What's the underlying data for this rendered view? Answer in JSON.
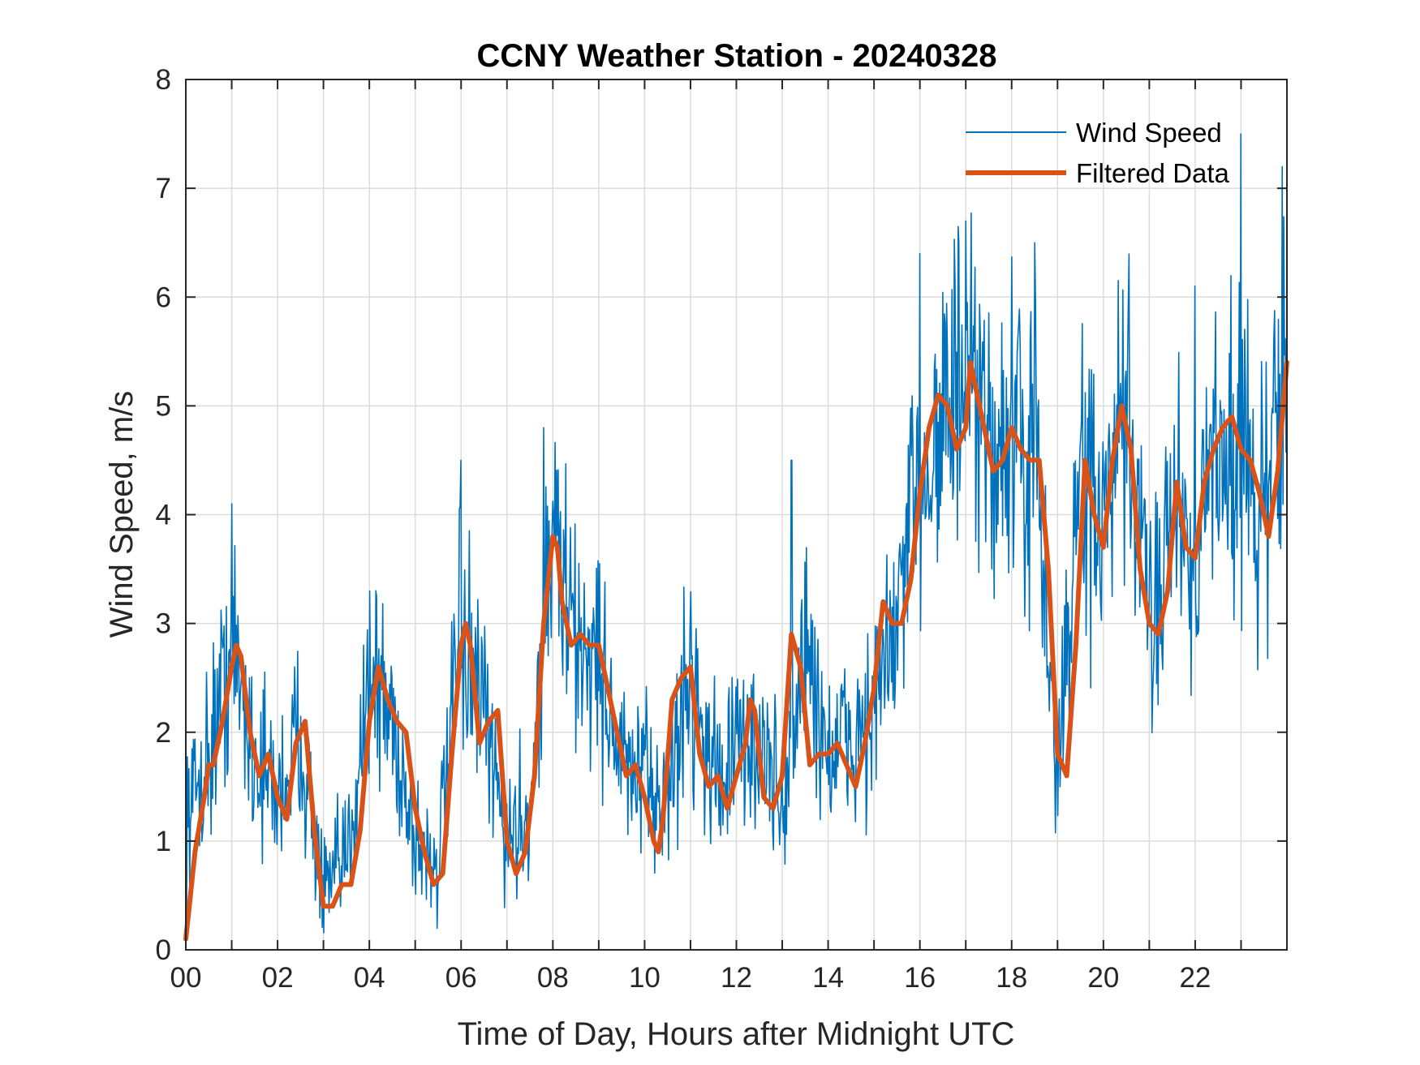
{
  "chart_data": {
    "type": "line",
    "title": "CCNY Weather Station - 20240328",
    "xlabel": "Time of Day, Hours after Midnight UTC",
    "ylabel": "Wind Speed, m/s",
    "xlim": [
      0,
      24
    ],
    "ylim": [
      0,
      8
    ],
    "x_ticks": [
      0,
      2,
      4,
      6,
      8,
      10,
      12,
      14,
      16,
      18,
      20,
      22
    ],
    "x_tick_labels": [
      "00",
      "02",
      "04",
      "06",
      "08",
      "10",
      "12",
      "14",
      "16",
      "18",
      "20",
      "22"
    ],
    "y_ticks": [
      0,
      1,
      2,
      3,
      4,
      5,
      6,
      7,
      8
    ],
    "y_tick_labels": [
      "0",
      "1",
      "2",
      "3",
      "4",
      "5",
      "6",
      "7",
      "8"
    ],
    "grid": true,
    "legend_position": "top-right",
    "colors": {
      "raw": "#0072BD",
      "filtered": "#D95319",
      "grid": "#dcdcdc",
      "axes": "#262626"
    },
    "series": [
      {
        "name": "Wind Speed",
        "style": "thin",
        "sample_step_hours": 0.0167,
        "noise_amplitude": 0.9,
        "envelope": [
          [
            0.0,
            1.2
          ],
          [
            0.5,
            1.8
          ],
          [
            1.0,
            2.8
          ],
          [
            1.5,
            1.8
          ],
          [
            2.0,
            1.4
          ],
          [
            2.5,
            2.0
          ],
          [
            3.0,
            0.5
          ],
          [
            3.5,
            0.8
          ],
          [
            4.0,
            2.6
          ],
          [
            4.5,
            2.1
          ],
          [
            5.0,
            1.0
          ],
          [
            5.5,
            0.8
          ],
          [
            6.0,
            2.9
          ],
          [
            6.5,
            2.1
          ],
          [
            7.0,
            1.0
          ],
          [
            7.5,
            1.3
          ],
          [
            8.0,
            3.9
          ],
          [
            8.5,
            2.8
          ],
          [
            9.0,
            2.7
          ],
          [
            9.5,
            1.7
          ],
          [
            10.0,
            1.5
          ],
          [
            10.5,
            1.4
          ],
          [
            11.0,
            2.6
          ],
          [
            11.5,
            1.6
          ],
          [
            12.0,
            1.8
          ],
          [
            12.5,
            1.9
          ],
          [
            13.0,
            1.3
          ],
          [
            13.5,
            2.8
          ],
          [
            14.0,
            1.8
          ],
          [
            14.5,
            1.9
          ],
          [
            15.0,
            2.2
          ],
          [
            15.5,
            3.0
          ],
          [
            16.0,
            4.3
          ],
          [
            16.5,
            5.0
          ],
          [
            17.0,
            5.1
          ],
          [
            17.5,
            4.6
          ],
          [
            18.0,
            4.7
          ],
          [
            18.5,
            4.5
          ],
          [
            19.0,
            1.6
          ],
          [
            19.5,
            4.4
          ],
          [
            20.0,
            3.8
          ],
          [
            20.5,
            4.9
          ],
          [
            21.0,
            3.0
          ],
          [
            21.5,
            4.2
          ],
          [
            22.0,
            3.6
          ],
          [
            22.5,
            4.7
          ],
          [
            23.0,
            4.6
          ],
          [
            23.5,
            3.9
          ],
          [
            24.0,
            5.5
          ]
        ],
        "spikes": [
          [
            1.0,
            4.1
          ],
          [
            6.0,
            4.5
          ],
          [
            7.8,
            4.8
          ],
          [
            13.2,
            4.5
          ],
          [
            16.0,
            6.4
          ],
          [
            17.0,
            6.7
          ],
          [
            18.5,
            6.5
          ],
          [
            22.0,
            6.1
          ],
          [
            23.0,
            7.5
          ],
          [
            23.9,
            7.2
          ]
        ]
      },
      {
        "name": "Filtered Data",
        "style": "thick",
        "x": [
          0.0,
          0.1,
          0.2,
          0.4,
          0.5,
          0.6,
          0.8,
          1.0,
          1.1,
          1.2,
          1.4,
          1.6,
          1.8,
          2.0,
          2.2,
          2.4,
          2.6,
          2.8,
          3.0,
          3.2,
          3.4,
          3.6,
          3.8,
          4.0,
          4.2,
          4.4,
          4.6,
          4.8,
          5.0,
          5.2,
          5.4,
          5.6,
          5.8,
          6.0,
          6.1,
          6.2,
          6.4,
          6.6,
          6.8,
          7.0,
          7.2,
          7.4,
          7.6,
          7.8,
          8.0,
          8.1,
          8.2,
          8.4,
          8.6,
          8.8,
          9.0,
          9.2,
          9.4,
          9.6,
          9.8,
          10.0,
          10.2,
          10.3,
          10.4,
          10.6,
          10.8,
          11.0,
          11.2,
          11.4,
          11.6,
          11.8,
          12.0,
          12.2,
          12.3,
          12.4,
          12.6,
          12.8,
          13.0,
          13.2,
          13.4,
          13.6,
          13.8,
          14.0,
          14.2,
          14.4,
          14.6,
          14.8,
          15.0,
          15.2,
          15.4,
          15.6,
          15.8,
          16.0,
          16.2,
          16.4,
          16.6,
          16.8,
          17.0,
          17.1,
          17.2,
          17.4,
          17.6,
          17.8,
          18.0,
          18.2,
          18.4,
          18.6,
          18.8,
          19.0,
          19.2,
          19.4,
          19.6,
          19.8,
          20.0,
          20.2,
          20.4,
          20.6,
          20.8,
          21.0,
          21.2,
          21.4,
          21.6,
          21.8,
          22.0,
          22.2,
          22.4,
          22.6,
          22.8,
          23.0,
          23.2,
          23.4,
          23.6,
          23.8,
          24.0
        ],
        "y": [
          0.1,
          0.5,
          0.9,
          1.4,
          1.7,
          1.7,
          2.1,
          2.6,
          2.8,
          2.7,
          2.0,
          1.6,
          1.8,
          1.4,
          1.2,
          1.9,
          2.1,
          1.1,
          0.4,
          0.4,
          0.6,
          0.6,
          1.1,
          2.1,
          2.6,
          2.3,
          2.1,
          2.0,
          1.3,
          0.9,
          0.6,
          0.7,
          1.8,
          2.8,
          3.0,
          2.8,
          1.9,
          2.1,
          2.2,
          1.0,
          0.7,
          0.9,
          1.6,
          3.0,
          3.8,
          3.7,
          3.2,
          2.8,
          2.9,
          2.8,
          2.8,
          2.4,
          2.0,
          1.6,
          1.7,
          1.4,
          1.0,
          0.9,
          1.2,
          2.3,
          2.5,
          2.6,
          1.8,
          1.5,
          1.6,
          1.3,
          1.6,
          1.9,
          2.3,
          2.2,
          1.4,
          1.3,
          1.6,
          2.9,
          2.6,
          1.7,
          1.8,
          1.8,
          1.9,
          1.7,
          1.5,
          1.9,
          2.4,
          3.2,
          3.0,
          3.0,
          3.4,
          4.2,
          4.8,
          5.1,
          5.0,
          4.6,
          4.8,
          5.4,
          5.2,
          4.8,
          4.4,
          4.5,
          4.8,
          4.6,
          4.5,
          4.5,
          3.5,
          1.8,
          1.6,
          2.8,
          4.5,
          4.0,
          3.7,
          4.5,
          5.0,
          4.6,
          3.5,
          3.0,
          2.9,
          3.3,
          4.3,
          3.7,
          3.6,
          4.3,
          4.6,
          4.8,
          4.9,
          4.6,
          4.5,
          4.2,
          3.8,
          4.4,
          5.4
        ]
      }
    ]
  }
}
